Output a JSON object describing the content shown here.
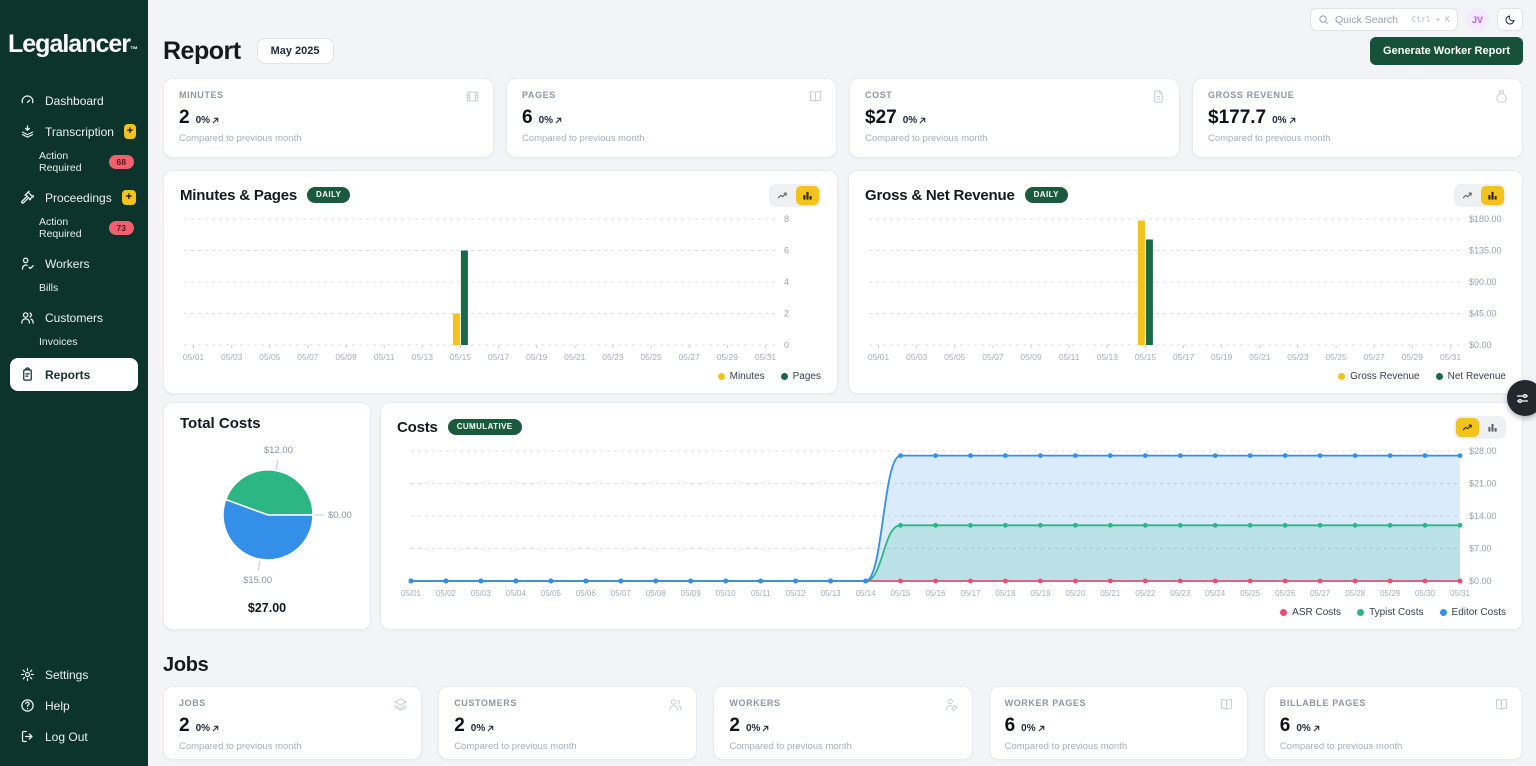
{
  "brand": {
    "name": "Legalancer",
    "tm": "™"
  },
  "topbar": {
    "search_placeholder": "Quick Search",
    "shortcut": "Ctrl + K",
    "avatar_initials": "JV"
  },
  "header": {
    "title": "Report",
    "period": "May 2025",
    "generate_button": "Generate Worker Report"
  },
  "sidebar": {
    "items": [
      {
        "label": "Dashboard"
      },
      {
        "label": "Transcription",
        "plus": "+",
        "sub": {
          "label": "Action Required",
          "count": "68"
        }
      },
      {
        "label": "Proceedings",
        "plus": "+",
        "sub": {
          "label": "Action Required",
          "count": "73"
        }
      },
      {
        "label": "Workers",
        "sub": {
          "label": "Bills"
        }
      },
      {
        "label": "Customers",
        "sub": {
          "label": "Invoices"
        }
      },
      {
        "label": "Reports",
        "active": true
      }
    ],
    "footer": [
      {
        "label": "Settings"
      },
      {
        "label": "Help"
      },
      {
        "label": "Log Out"
      }
    ]
  },
  "stats": [
    {
      "label": "MINUTES",
      "value": "2",
      "delta": "0%",
      "note": "Compared to previous month"
    },
    {
      "label": "PAGES",
      "value": "6",
      "delta": "0%",
      "note": "Compared to previous month"
    },
    {
      "label": "COST",
      "value": "$27",
      "delta": "0%",
      "note": "Compared to previous month"
    },
    {
      "label": "GROSS REVENUE",
      "value": "$177.7",
      "delta": "0%",
      "note": "Compared to previous month"
    }
  ],
  "jobs": {
    "title": "Jobs",
    "stats": [
      {
        "label": "JOBS",
        "value": "2",
        "delta": "0%",
        "note": "Compared to previous month"
      },
      {
        "label": "CUSTOMERS",
        "value": "2",
        "delta": "0%",
        "note": "Compared to previous month"
      },
      {
        "label": "WORKERS",
        "value": "2",
        "delta": "0%",
        "note": "Compared to previous month"
      },
      {
        "label": "WORKER PAGES",
        "value": "6",
        "delta": "0%",
        "note": "Compared to previous month"
      },
      {
        "label": "BILLABLE PAGES",
        "value": "6",
        "delta": "0%",
        "note": "Compared to previous month"
      }
    ]
  },
  "colors": {
    "sidebar_green": "#0d332d",
    "accent_yellow": "#f2c21d",
    "badge_green": "#1c5a3d",
    "badge_red": "#f25f6d",
    "bar_dark_green": "#1a6b45",
    "pie_green": "#2cb685",
    "pie_blue": "#348fe8",
    "line_pink": "#ea4c72",
    "button_green": "#17503b"
  },
  "chart_data": [
    {
      "id": "minutes_pages",
      "type": "bar",
      "title": "Minutes & Pages",
      "badge": "DAILY",
      "active_view": "bar",
      "x_label_every": 2,
      "ylim": [
        0,
        8
      ],
      "yticks": [
        0,
        2,
        4,
        6,
        8
      ],
      "y_money": false,
      "grid": "dashed",
      "legend_position": "bottom-right",
      "categories": [
        "05/01",
        "05/02",
        "05/03",
        "05/04",
        "05/05",
        "05/06",
        "05/07",
        "05/08",
        "05/09",
        "05/10",
        "05/11",
        "05/12",
        "05/13",
        "05/14",
        "05/15",
        "05/16",
        "05/17",
        "05/18",
        "05/19",
        "05/20",
        "05/21",
        "05/22",
        "05/23",
        "05/24",
        "05/25",
        "05/26",
        "05/27",
        "05/28",
        "05/29",
        "05/30",
        "05/31"
      ],
      "series": [
        {
          "name": "Minutes",
          "color": "#f2c21d",
          "values": [
            0,
            0,
            0,
            0,
            0,
            0,
            0,
            0,
            0,
            0,
            0,
            0,
            0,
            0,
            2,
            0,
            0,
            0,
            0,
            0,
            0,
            0,
            0,
            0,
            0,
            0,
            0,
            0,
            0,
            0,
            0
          ]
        },
        {
          "name": "Pages",
          "color": "#1a6b45",
          "values": [
            0,
            0,
            0,
            0,
            0,
            0,
            0,
            0,
            0,
            0,
            0,
            0,
            0,
            0,
            6,
            0,
            0,
            0,
            0,
            0,
            0,
            0,
            0,
            0,
            0,
            0,
            0,
            0,
            0,
            0,
            0
          ]
        }
      ]
    },
    {
      "id": "gross_net",
      "type": "bar",
      "title": "Gross & Net Revenue",
      "badge": "DAILY",
      "active_view": "bar",
      "x_label_every": 2,
      "ylim": [
        0,
        180
      ],
      "yticks": [
        0,
        45,
        90,
        135,
        180
      ],
      "y_money": true,
      "grid": "dashed",
      "legend_position": "bottom-right",
      "categories": [
        "05/01",
        "05/02",
        "05/03",
        "05/04",
        "05/05",
        "05/06",
        "05/07",
        "05/08",
        "05/09",
        "05/10",
        "05/11",
        "05/12",
        "05/13",
        "05/14",
        "05/15",
        "05/16",
        "05/17",
        "05/18",
        "05/19",
        "05/20",
        "05/21",
        "05/22",
        "05/23",
        "05/24",
        "05/25",
        "05/26",
        "05/27",
        "05/28",
        "05/29",
        "05/30",
        "05/31"
      ],
      "series": [
        {
          "name": "Gross Revenue",
          "color": "#f2c21d",
          "values": [
            0,
            0,
            0,
            0,
            0,
            0,
            0,
            0,
            0,
            0,
            0,
            0,
            0,
            0,
            177.7,
            0,
            0,
            0,
            0,
            0,
            0,
            0,
            0,
            0,
            0,
            0,
            0,
            0,
            0,
            0,
            0
          ]
        },
        {
          "name": "Net Revenue",
          "color": "#1a6b45",
          "values": [
            0,
            0,
            0,
            0,
            0,
            0,
            0,
            0,
            0,
            0,
            0,
            0,
            0,
            0,
            150.7,
            0,
            0,
            0,
            0,
            0,
            0,
            0,
            0,
            0,
            0,
            0,
            0,
            0,
            0,
            0,
            0
          ]
        }
      ]
    },
    {
      "id": "costs",
      "type": "area",
      "title": "Costs",
      "badge": "CUMULATIVE",
      "active_view": "line",
      "x_label_every": 1,
      "ylim": [
        0,
        28
      ],
      "yticks": [
        0,
        7,
        14,
        21,
        28
      ],
      "y_money": true,
      "grid": "dashed",
      "legend_position": "bottom-right",
      "categories": [
        "05/01",
        "05/02",
        "05/03",
        "05/04",
        "05/05",
        "05/06",
        "05/07",
        "05/08",
        "05/09",
        "05/10",
        "05/11",
        "05/12",
        "05/13",
        "05/14",
        "05/15",
        "05/16",
        "05/17",
        "05/18",
        "05/19",
        "05/20",
        "05/21",
        "05/22",
        "05/23",
        "05/24",
        "05/25",
        "05/26",
        "05/27",
        "05/28",
        "05/29",
        "05/30",
        "05/31"
      ],
      "series": [
        {
          "name": "ASR Costs",
          "color": "#ea4c72",
          "values": [
            0,
            0,
            0,
            0,
            0,
            0,
            0,
            0,
            0,
            0,
            0,
            0,
            0,
            0,
            0,
            0,
            0,
            0,
            0,
            0,
            0,
            0,
            0,
            0,
            0,
            0,
            0,
            0,
            0,
            0,
            0
          ]
        },
        {
          "name": "Typist Costs",
          "color": "#2cb685",
          "values": [
            0,
            0,
            0,
            0,
            0,
            0,
            0,
            0,
            0,
            0,
            0,
            0,
            0,
            0,
            12,
            12,
            12,
            12,
            12,
            12,
            12,
            12,
            12,
            12,
            12,
            12,
            12,
            12,
            12,
            12,
            12
          ]
        },
        {
          "name": "Editor Costs",
          "color": "#348fe8",
          "values": [
            0,
            0,
            0,
            0,
            0,
            0,
            0,
            0,
            0,
            0,
            0,
            0,
            0,
            0,
            27,
            27,
            27,
            27,
            27,
            27,
            27,
            27,
            27,
            27,
            27,
            27,
            27,
            27,
            27,
            27,
            27
          ]
        }
      ]
    },
    {
      "id": "total_costs",
      "type": "pie",
      "title": "Total Costs",
      "total_label": "$27.00",
      "slices": [
        {
          "label": "$12.00",
          "value": 12,
          "color": "#2cb685"
        },
        {
          "label": "$15.00",
          "value": 15,
          "color": "#348fe8"
        },
        {
          "label": "$0.00",
          "value": 0,
          "color": "#ea4c72"
        }
      ]
    }
  ]
}
